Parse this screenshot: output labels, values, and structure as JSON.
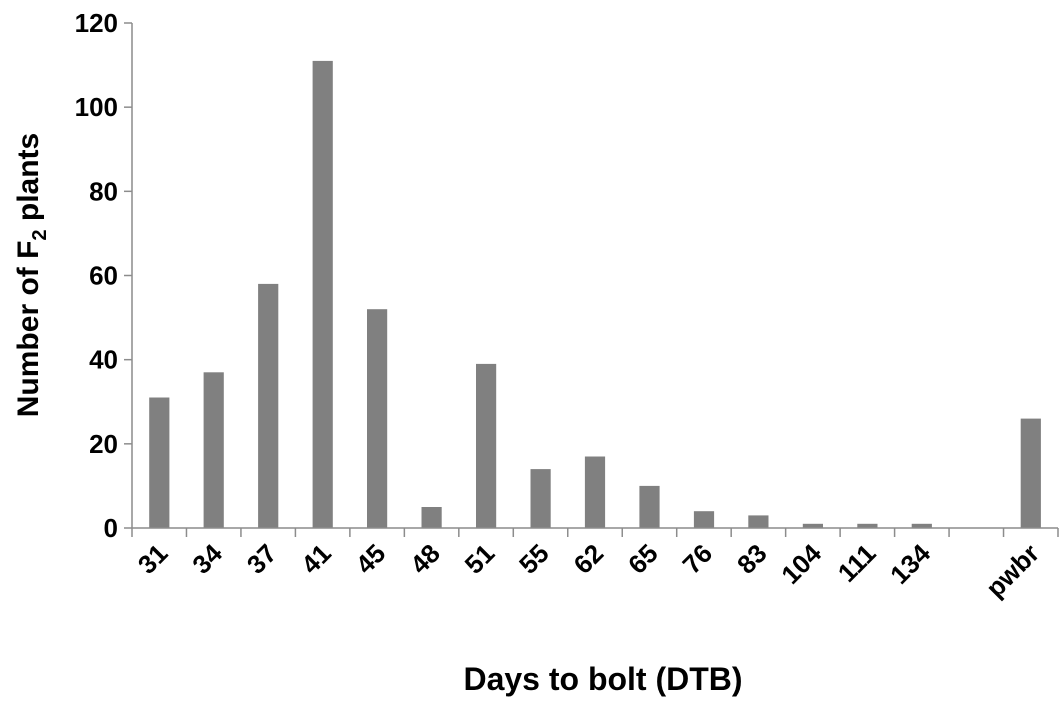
{
  "chart_data": {
    "type": "bar",
    "xlabel": "Days to bolt (DTB)",
    "ylabel": "Number of F2 plants",
    "ylabel_parts": {
      "before": "Number of F",
      "sub": "2",
      "after": " plants"
    },
    "categories": [
      "31",
      "34",
      "37",
      "41",
      "45",
      "48",
      "51",
      "55",
      "62",
      "65",
      "76",
      "83",
      "104",
      "111",
      "134",
      "",
      "pwbr"
    ],
    "values": [
      31,
      37,
      58,
      111,
      52,
      5,
      39,
      14,
      17,
      10,
      4,
      3,
      1,
      1,
      1,
      0,
      26
    ],
    "ylim": [
      0,
      120
    ],
    "yticks": [
      "0",
      "20",
      "40",
      "60",
      "80",
      "100",
      "120"
    ],
    "grid": false,
    "legend": "none",
    "bar_color": "#808080",
    "axis_color": "#8c8c8c"
  }
}
